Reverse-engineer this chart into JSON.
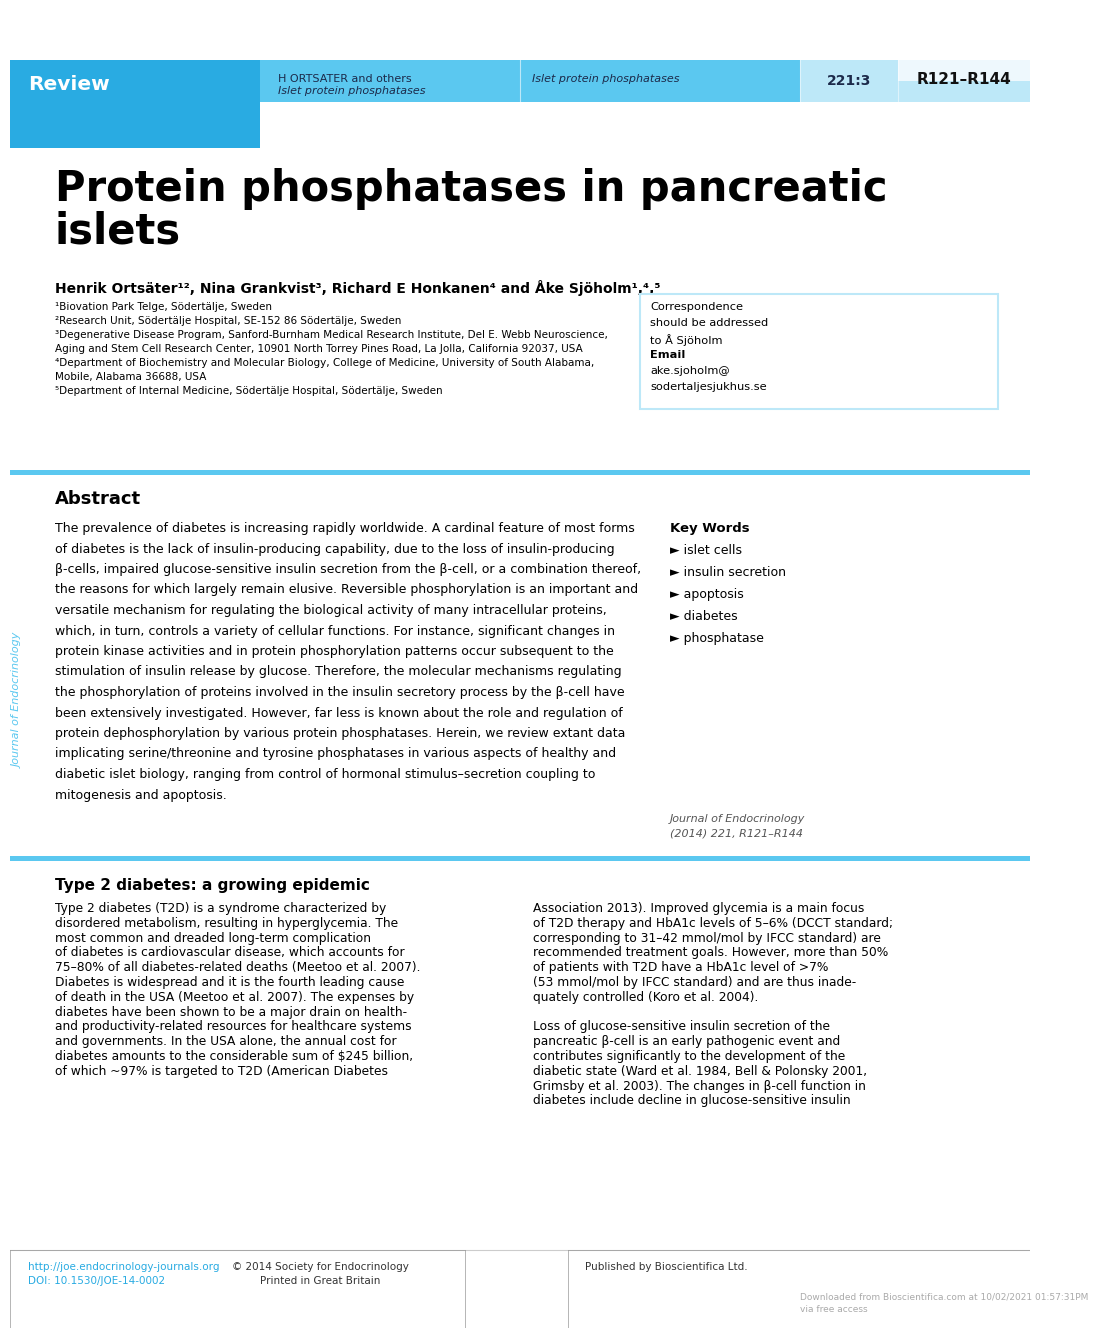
{
  "dark_blue": "#29ABE2",
  "mid_blue": "#5BC8F0",
  "light_blue": "#BDE8F8",
  "very_light_blue": "#D8F0FA",
  "bg_color": "#FFFFFF",
  "review_text": "Review",
  "header_author": "H ORTSATER and others",
  "header_journal": "Islet protein phosphatases",
  "header_vol": "221:3",
  "header_pages": "R121–R144",
  "title_line1": "Protein phosphatases in pancreatic",
  "title_line2": "islets",
  "author_line": "Henrik Ortsäter¹², Nina Grankvist³, Richard E Honkanen⁴ and Åke Sjöholm¹,⁴,⁵",
  "aff1": "¹Biovation Park Telge, Södertälje, Sweden",
  "aff2": "²Research Unit, Södertälje Hospital, SE-152 86 Södertälje, Sweden",
  "aff3a": "³Degenerative Disease Program, Sanford-Burnham Medical Research Institute, Del E. Webb Neuroscience,",
  "aff3b": "Aging and Stem Cell Research Center, 10901 North Torrey Pines Road, La Jolla, California 92037, USA",
  "aff4a": "⁴Department of Biochemistry and Molecular Biology, College of Medicine, University of South Alabama,",
  "aff4b": "Mobile, Alabama 36688, USA",
  "aff5": "⁵Department of Internal Medicine, Södertälje Hospital, Södertälje, Sweden",
  "corr_lines": [
    [
      "Correspondence",
      false
    ],
    [
      "should be addressed",
      false
    ],
    [
      "to Å Sjöholm",
      false
    ],
    [
      "Email",
      true
    ],
    [
      "ake.sjoholm@",
      false
    ],
    [
      "sodertaljesjukhus.se",
      false
    ]
  ],
  "abstract_title": "Abstract",
  "abstract_lines": [
    "The prevalence of diabetes is increasing rapidly worldwide. A cardinal feature of most forms",
    "of diabetes is the lack of insulin-producing capability, due to the loss of insulin-producing",
    "β-cells, impaired glucose-sensitive insulin secretion from the β-cell, or a combination thereof,",
    "the reasons for which largely remain elusive. Reversible phosphorylation is an important and",
    "versatile mechanism for regulating the biological activity of many intracellular proteins,",
    "which, in turn, controls a variety of cellular functions. For instance, significant changes in",
    "protein kinase activities and in protein phosphorylation patterns occur subsequent to the",
    "stimulation of insulin release by glucose. Therefore, the molecular mechanisms regulating",
    "the phosphorylation of proteins involved in the insulin secretory process by the β-cell have",
    "been extensively investigated. However, far less is known about the role and regulation of",
    "protein dephosphorylation by various protein phosphatases. Herein, we review extant data",
    "implicating serine/threonine and tyrosine phosphatases in various aspects of healthy and",
    "diabetic islet biology, ranging from control of hormonal stimulus–secretion coupling to",
    "mitogenesis and apoptosis."
  ],
  "keywords_title": "Key Words",
  "keywords": [
    "islet cells",
    "insulin secretion",
    "apoptosis",
    "diabetes",
    "phosphatase"
  ],
  "journal_ref_line1": "Journal of Endocrinology",
  "journal_ref_line2": "(2014) 221, R121–R144",
  "sidebar_text": "Journal of Endocrinology",
  "section_title": "Type 2 diabetes: a growing epidemic",
  "body_left_lines": [
    "Type 2 diabetes (T2D) is a syndrome characterized by",
    "disordered metabolism, resulting in hyperglycemia. The",
    "most common and dreaded long-term complication",
    "of diabetes is cardiovascular disease, which accounts for",
    "75–80% of all diabetes-related deaths (Meetoo et al. 2007).",
    "Diabetes is widespread and it is the fourth leading cause",
    "of death in the USA (Meetoo et al. 2007). The expenses by",
    "diabetes have been shown to be a major drain on health-",
    "and productivity-related resources for healthcare systems",
    "and governments. In the USA alone, the annual cost for",
    "diabetes amounts to the considerable sum of $245 billion,",
    "of which ~97% is targeted to T2D (American Diabetes"
  ],
  "body_right_lines": [
    "Association 2013). Improved glycemia is a main focus",
    "of T2D therapy and HbA1c levels of 5–6% (DCCT standard;",
    "corresponding to 31–42 mmol/mol by IFCC standard) are",
    "recommended treatment goals. However, more than 50%",
    "of patients with T2D have a HbA1c level of >7%",
    "(53 mmol/mol by IFCC standard) and are thus inade-",
    "quately controlled (Koro et al. 2004).",
    "",
    "Loss of glucose-sensitive insulin secretion of the",
    "pancreatic β-cell is an early pathogenic event and",
    "contributes significantly to the development of the",
    "diabetic state (Ward et al. 1984, Bell & Polonsky 2001,",
    "Grimsby et al. 2003). The changes in β-cell function in",
    "diabetes include decline in glucose-sensitive insulin"
  ],
  "footer_url1": "http://joe.endocrinology-journals.org",
  "footer_url2": "DOI: 10.1530/JOE-14-0002",
  "footer_copy1": "© 2014 Society for Endocrinology",
  "footer_copy2": "Printed in Great Britain",
  "footer_pub": "Published by Bioscientifica Ltd.",
  "footer_dl1": "Downloaded from Bioscientifica.com at 10/02/2021 01:57:31PM",
  "footer_dl2": "via free access"
}
